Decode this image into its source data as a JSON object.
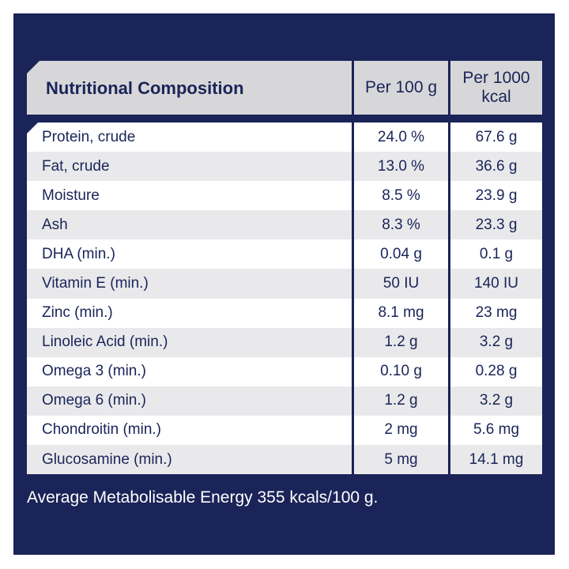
{
  "header": {
    "title": "Nutritional Composition",
    "col2": "Per 100 g",
    "col3": "Per 1000 kcal"
  },
  "rows": [
    [
      "Protein, crude",
      "24.0 %",
      "67.6 g"
    ],
    [
      "Fat, crude",
      "13.0 %",
      "36.6 g"
    ],
    [
      "Moisture",
      "8.5 %",
      "23.9 g"
    ],
    [
      "Ash",
      "8.3 %",
      "23.3 g"
    ],
    [
      "DHA (min.)",
      "0.04 g",
      "0.1 g"
    ],
    [
      "Vitamin E (min.)",
      "50 IU",
      "140 IU"
    ],
    [
      "Zinc (min.)",
      "8.1 mg",
      "23 mg"
    ],
    [
      "Linoleic Acid (min.)",
      "1.2 g",
      "3.2 g"
    ],
    [
      "Omega 3 (min.)",
      "0.10 g",
      "0.28 g"
    ],
    [
      "Omega 6 (min.)",
      "1.2 g",
      "3.2 g"
    ],
    [
      "Chondroitin (min.)",
      "2 mg",
      "5.6 mg"
    ],
    [
      "Glucosamine (min.)",
      "5 mg",
      "14.1 mg"
    ]
  ],
  "footer": "Average Metabolisable Energy 355 kcals/100 g.",
  "colors": {
    "navy": "#1a2458",
    "header_gray": "#d7d7d9",
    "row_alt": "#e9e9eb"
  }
}
